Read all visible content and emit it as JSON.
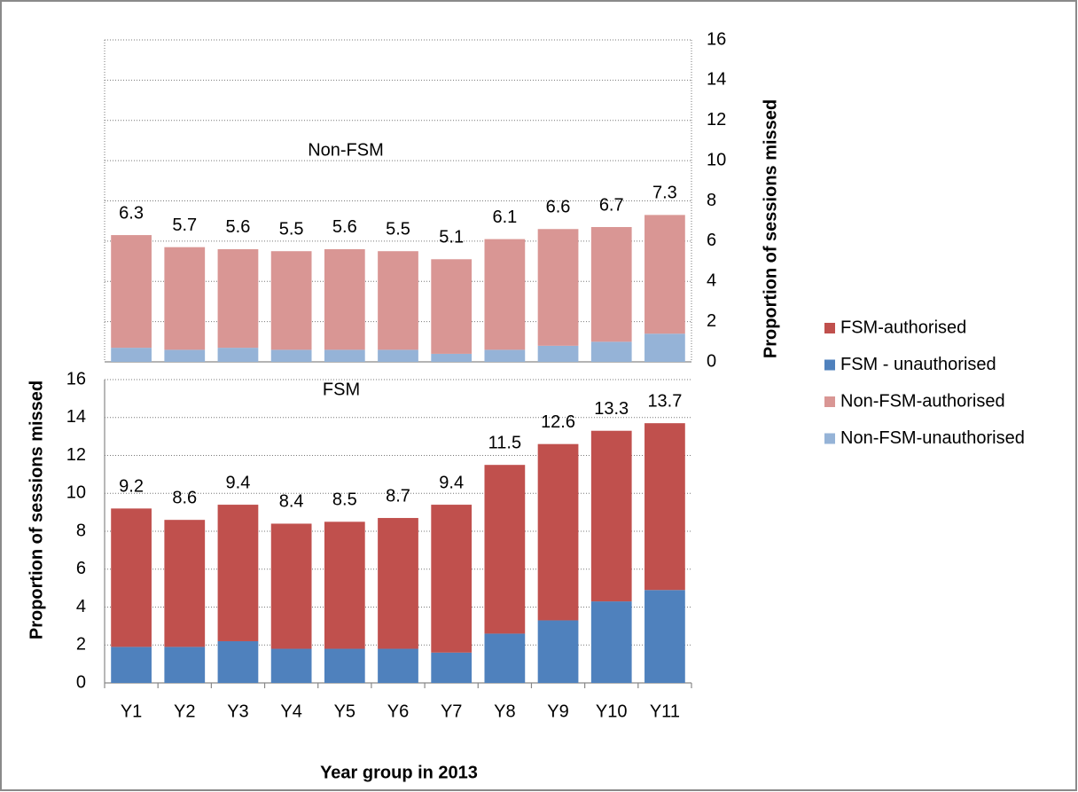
{
  "chart_data": [
    {
      "type": "bar",
      "stacked": true,
      "title": "Non-FSM",
      "y2_label": "Proportion of sessions missed",
      "series": [
        {
          "name": "Non-FSM-unauthorised",
          "color": "#95b3d7",
          "axis": "y2",
          "values": [
            0.7,
            0.6,
            0.7,
            0.6,
            0.6,
            0.6,
            0.4,
            0.6,
            0.8,
            1.0,
            1.4
          ]
        },
        {
          "name": "Non-FSM-authorised",
          "color": "#d99694",
          "axis": "y2",
          "values": [
            5.6,
            5.1,
            4.9,
            4.9,
            5.0,
            4.9,
            4.7,
            5.5,
            5.8,
            5.7,
            5.9
          ]
        }
      ],
      "totals": [
        6.3,
        5.7,
        5.6,
        5.5,
        5.6,
        5.5,
        5.1,
        6.1,
        6.6,
        6.7,
        7.3
      ],
      "y2lim": [
        0,
        16
      ],
      "y2ticks": [
        0,
        2,
        4,
        6,
        8,
        10,
        12,
        14,
        16
      ],
      "grid": true
    },
    {
      "type": "bar",
      "stacked": true,
      "title": "FSM",
      "x_label": "Year group in 2013",
      "y_label": "Proportion of sessions missed",
      "categories": [
        "Y1",
        "Y2",
        "Y3",
        "Y4",
        "Y5",
        "Y6",
        "Y7",
        "Y8",
        "Y9",
        "Y10",
        "Y11"
      ],
      "series": [
        {
          "name": "FSM - unauthorised",
          "color": "#4f81bd",
          "values": [
            1.9,
            1.9,
            2.2,
            1.8,
            1.8,
            1.8,
            1.6,
            2.6,
            3.3,
            4.3,
            4.9
          ]
        },
        {
          "name": "FSM-authorised",
          "color": "#c0504d",
          "values": [
            7.3,
            6.7,
            7.2,
            6.6,
            6.7,
            6.9,
            7.8,
            8.9,
            9.3,
            9.0,
            8.8
          ]
        }
      ],
      "totals": [
        9.2,
        8.6,
        9.4,
        8.4,
        8.5,
        8.7,
        9.4,
        11.5,
        12.6,
        13.3,
        13.7
      ],
      "ylim": [
        0,
        16
      ],
      "yticks": [
        0,
        2,
        4,
        6,
        8,
        10,
        12,
        14,
        16
      ],
      "grid": true
    }
  ]
}
